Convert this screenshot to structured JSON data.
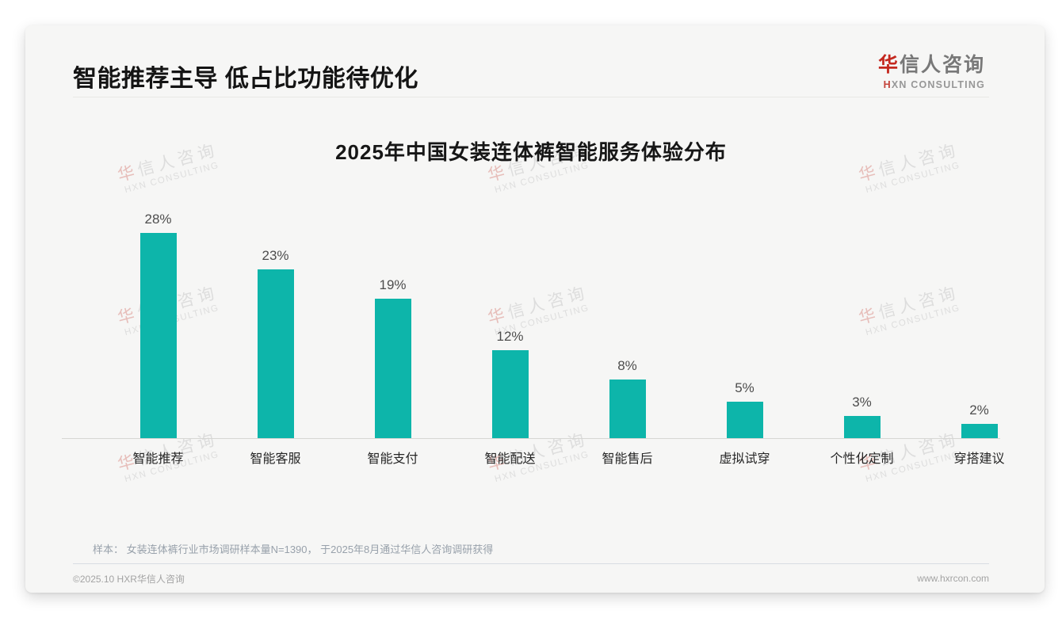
{
  "header": {
    "title": "智能推荐主导 低占比功能待优化",
    "logo": {
      "zh_accent": "华",
      "zh_rest": "信人咨询",
      "en_accent": "H",
      "en_rest": "XN CONSULTING"
    }
  },
  "chart_data": {
    "type": "bar",
    "title": "2025年中国女装连体裤智能服务体验分布",
    "categories": [
      "智能推荐",
      "智能客服",
      "智能支付",
      "智能配送",
      "智能售后",
      "虚拟试穿",
      "个性化定制",
      "穿搭建议"
    ],
    "values": [
      28,
      23,
      19,
      12,
      8,
      5,
      3,
      2
    ],
    "value_labels": [
      "28%",
      "23%",
      "19%",
      "12%",
      "8%",
      "5%",
      "3%",
      "2%"
    ],
    "unit": "%",
    "xlabel": "",
    "ylabel": "",
    "ylim": [
      0,
      30
    ],
    "grid": false,
    "legend": "none",
    "bar_color": "#0db5aa"
  },
  "watermark": {
    "zh_accent": "华",
    "zh_rest": "信人咨询",
    "en": "HXN CONSULTING"
  },
  "note": {
    "text": "样本： 女装连体裤行业市场调研样本量N=1390， 于2025年8月通过华信人咨询调研获得"
  },
  "footer": {
    "left": "©2025.10 HXR华信人咨询",
    "right": "www.hxrcon.com"
  },
  "colors": {
    "bar": "#0db5aa",
    "card_background": "#f6f6f5",
    "logo_accent_red": "#c4281f",
    "title_text": "#141414",
    "value_label": "#4d4d4d",
    "category_label": "#262626",
    "note_text": "#98a1ab",
    "footer_text": "#a3a3a3",
    "axis_line": "#d6d6d3"
  }
}
